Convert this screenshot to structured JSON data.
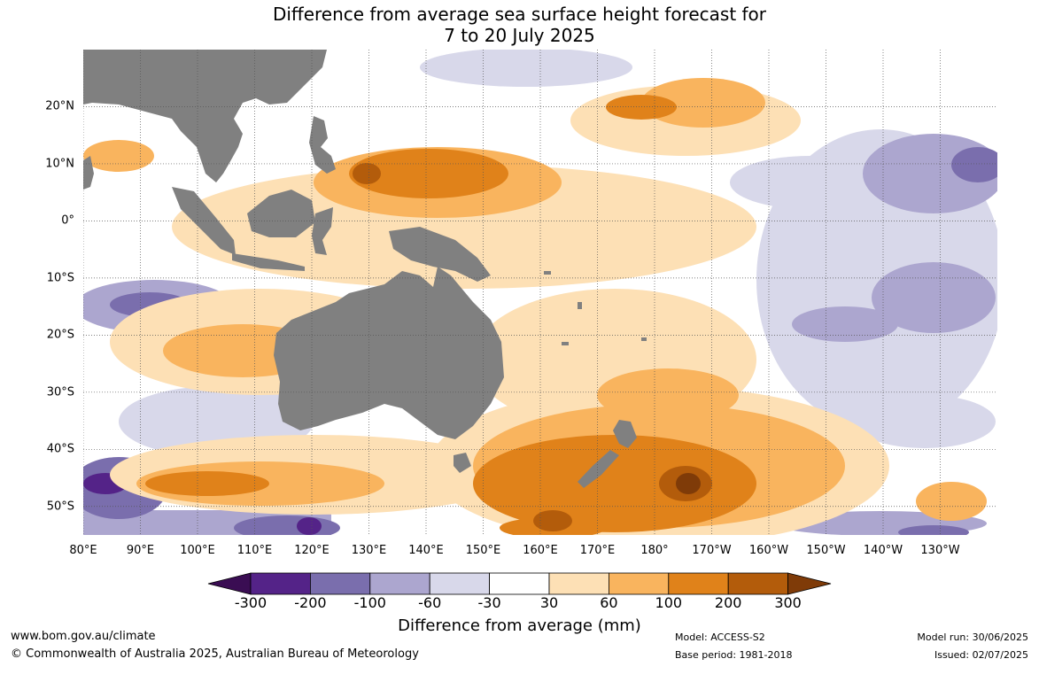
{
  "title_line1": "Difference from average sea surface height forecast for",
  "title_line2": "7 to 20 July 2025",
  "map": {
    "lat_labels": [
      "20°N",
      "10°N",
      "0°",
      "10°S",
      "20°S",
      "30°S",
      "40°S",
      "50°S"
    ],
    "lat_values": [
      20,
      10,
      0,
      -10,
      -20,
      -30,
      -40,
      -50
    ],
    "lon_labels": [
      "80°E",
      "90°E",
      "100°E",
      "110°E",
      "120°E",
      "130°E",
      "140°E",
      "150°E",
      "160°E",
      "170°E",
      "180°",
      "170°W",
      "160°W",
      "150°W",
      "140°W",
      "130°W"
    ],
    "lon_values": [
      80,
      90,
      100,
      110,
      120,
      130,
      140,
      150,
      160,
      170,
      180,
      190,
      200,
      210,
      220,
      230
    ],
    "lon_range": [
      80,
      240
    ],
    "lat_range": [
      -55,
      30
    ],
    "land_color": "#808080",
    "gridlines": true
  },
  "colorbar": {
    "title": "Difference from average (mm)",
    "ticks": [
      "-300",
      "-200",
      "-100",
      "-60",
      "-30",
      "30",
      "60",
      "100",
      "200",
      "300"
    ],
    "colors": [
      "#3a0d53",
      "#542388",
      "#7a6ead",
      "#aca6cf",
      "#d8d8ea",
      "#ffffff",
      "#fde0b5",
      "#f9b45e",
      "#e0821a",
      "#b35c0b",
      "#7f3b08"
    ]
  },
  "footer": {
    "website": "www.bom.gov.au/climate",
    "copyright": "© Commonwealth of Australia 2025, Australian Bureau of Meteorology",
    "model": "Model: ACCESS-S2",
    "base_period": "Base period: 1981-2018",
    "model_run": "Model run: 30/06/2025",
    "issued": "Issued: 02/07/2025"
  }
}
